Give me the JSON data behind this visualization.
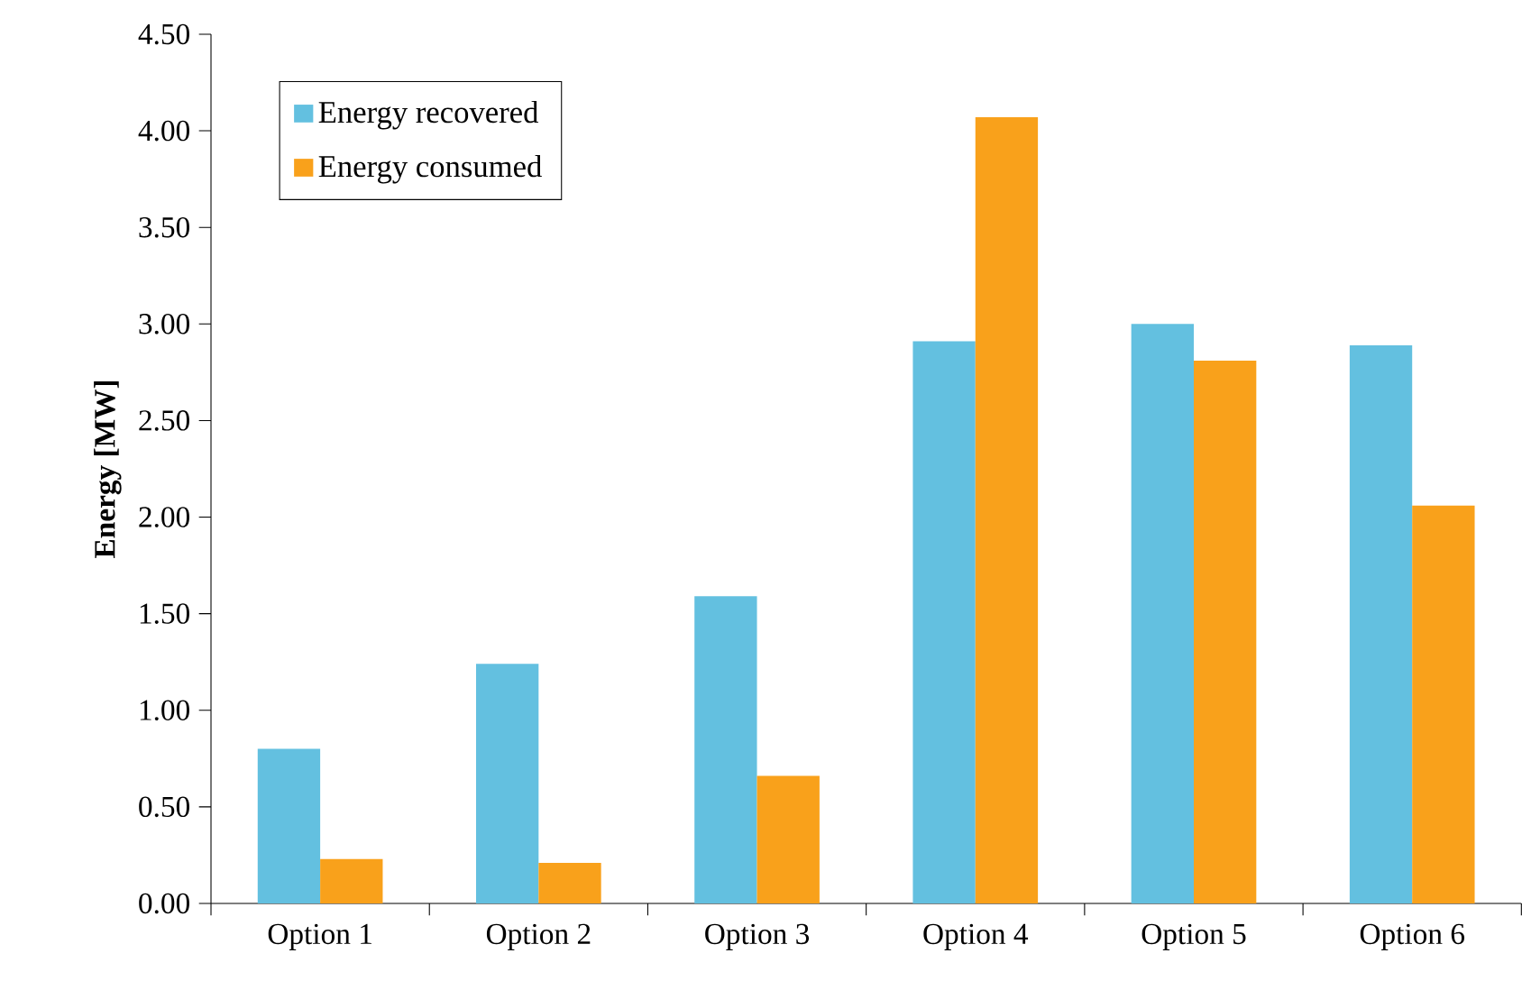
{
  "chart_data": {
    "type": "bar",
    "ylabel": "Energy [MW]",
    "categories": [
      "Option 1",
      "Option 2",
      "Option 3",
      "Option 4",
      "Option 5",
      "Option 6"
    ],
    "series": [
      {
        "name": "Energy recovered",
        "color": "#63c0e0",
        "values": [
          0.8,
          1.24,
          1.59,
          2.91,
          3.0,
          2.89
        ]
      },
      {
        "name": "Energy consumed",
        "color": "#f9a11b",
        "values": [
          0.23,
          0.21,
          0.66,
          4.07,
          2.81,
          2.06
        ]
      }
    ],
    "ylim": [
      0,
      4.5
    ],
    "yticks": [
      {
        "value": 0,
        "label": "0.00"
      },
      {
        "value": 0.5,
        "label": "0.50"
      },
      {
        "value": 1,
        "label": "1.00"
      },
      {
        "value": 1.5,
        "label": "1.50"
      },
      {
        "value": 2,
        "label": "2.00"
      },
      {
        "value": 2.5,
        "label": "2.50"
      },
      {
        "value": 3,
        "label": "3.00"
      },
      {
        "value": 3.5,
        "label": "3.50"
      },
      {
        "value": 4,
        "label": "4.00"
      },
      {
        "value": 4.5,
        "label": "4.50"
      }
    ],
    "legend": "top left"
  }
}
